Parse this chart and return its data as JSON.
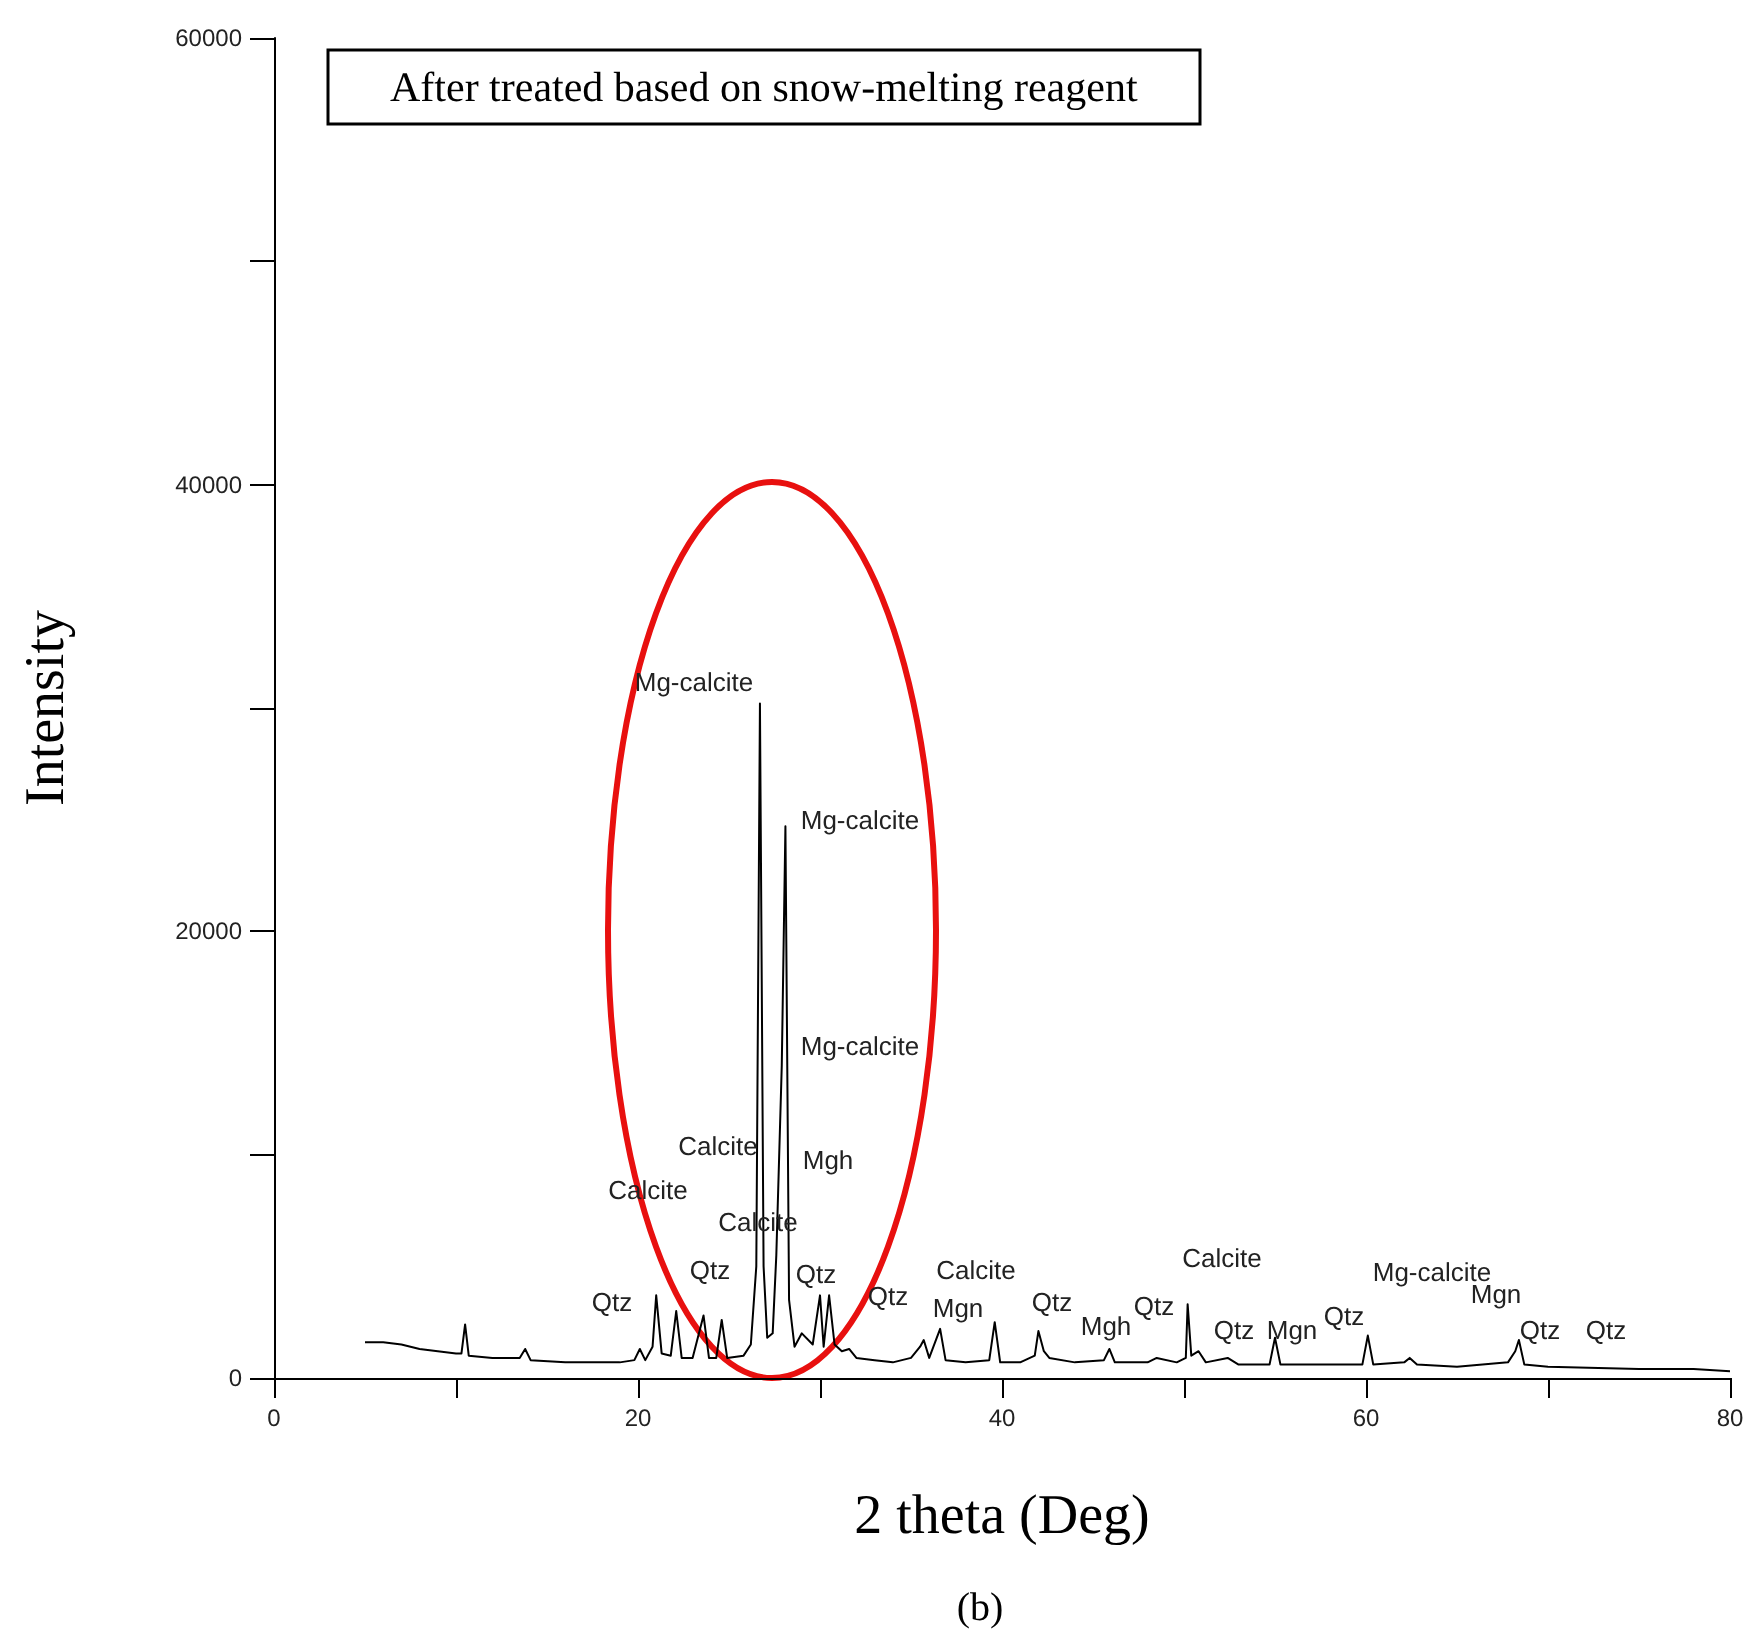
{
  "chart_data": {
    "type": "line",
    "title": "After treated based on snow-melting reagent",
    "xlabel": "2 theta (Deg)",
    "ylabel": "Intensity",
    "xlim": [
      0,
      80
    ],
    "xticks": [
      0,
      {
        "value": 10,
        "label": null
      },
      20,
      {
        "value": 30,
        "label": null
      },
      40,
      {
        "value": 50,
        "label": null
      },
      60,
      {
        "value": 70,
        "label": null
      },
      80
    ],
    "ylim": [
      0,
      60000
    ],
    "yticks": [
      0,
      {
        "value": 10000,
        "label": null
      },
      20000,
      {
        "value": 30000,
        "label": null
      },
      40000,
      {
        "value": 50000,
        "label": null
      },
      60000
    ],
    "grid": false,
    "line_style": "solid",
    "marker": "none",
    "series": [
      {
        "color": "#000000",
        "x": [
          5,
          6,
          7,
          8,
          9,
          10,
          10.3,
          10.5,
          10.7,
          12,
          13.5,
          13.8,
          14.1,
          16,
          18,
          19,
          19.8,
          20.1,
          20.4,
          20.8,
          21,
          21.3,
          21.8,
          22.1,
          22.4,
          23,
          23.6,
          23.9,
          24.3,
          24.6,
          24.9,
          25.8,
          26.2,
          26.5,
          26.7,
          26.9,
          27.1,
          27.4,
          27.6,
          27.9,
          28.1,
          28.3,
          28.6,
          29,
          29.6,
          30,
          30.2,
          30.5,
          30.8,
          31.2,
          31.6,
          32,
          33,
          34,
          35,
          35.5,
          35.7,
          36,
          36.6,
          36.9,
          38,
          39.3,
          39.6,
          39.9,
          41,
          41.8,
          42,
          42.3,
          42.6,
          44,
          45.6,
          45.9,
          46.2,
          48,
          48.5,
          49.6,
          50.1,
          50.2,
          50.4,
          50.8,
          51.2,
          52.4,
          53,
          54.7,
          55,
          55.3,
          57,
          59.8,
          60.1,
          60.4,
          62.1,
          62.4,
          62.8,
          65,
          67.8,
          68.2,
          68.4,
          68.7,
          70,
          75,
          78,
          80
        ],
        "values": [
          1600,
          1600,
          1500,
          1300,
          1200,
          1100,
          1100,
          2400,
          1000,
          900,
          900,
          1300,
          800,
          700,
          700,
          700,
          800,
          1300,
          800,
          1400,
          3700,
          1100,
          1000,
          3000,
          900,
          900,
          2800,
          900,
          900,
          2600,
          900,
          1000,
          1500,
          5000,
          30200,
          5000,
          1800,
          2000,
          5500,
          14000,
          24700,
          3500,
          1400,
          2000,
          1500,
          3700,
          1400,
          3700,
          1500,
          1200,
          1300,
          900,
          800,
          700,
          900,
          1400,
          1700,
          900,
          2200,
          800,
          700,
          800,
          2500,
          700,
          700,
          1000,
          2100,
          1200,
          900,
          700,
          800,
          1300,
          700,
          700,
          900,
          700,
          900,
          3300,
          1000,
          1200,
          700,
          900,
          600,
          600,
          1800,
          600,
          600,
          600,
          1900,
          600,
          700,
          900,
          600,
          500,
          700,
          1200,
          1700,
          600,
          500,
          400,
          400,
          300
        ]
      }
    ],
    "annotations": [
      "Mg-calcite",
      "Mg-calcite",
      "Mg-calcite",
      "Calcite",
      "Mgh",
      "Calcite",
      "Calcite",
      "Qtz",
      "Qtz",
      "Qtz",
      "Qtz",
      "Calcite",
      "Mgn",
      "Qtz",
      "Mgh",
      "Qtz",
      "Calcite",
      "Qtz",
      "Mgn",
      "Qtz",
      "Mg-calcite",
      "Mgn",
      "Qtz",
      "Qtz",
      "(b)"
    ]
  }
}
